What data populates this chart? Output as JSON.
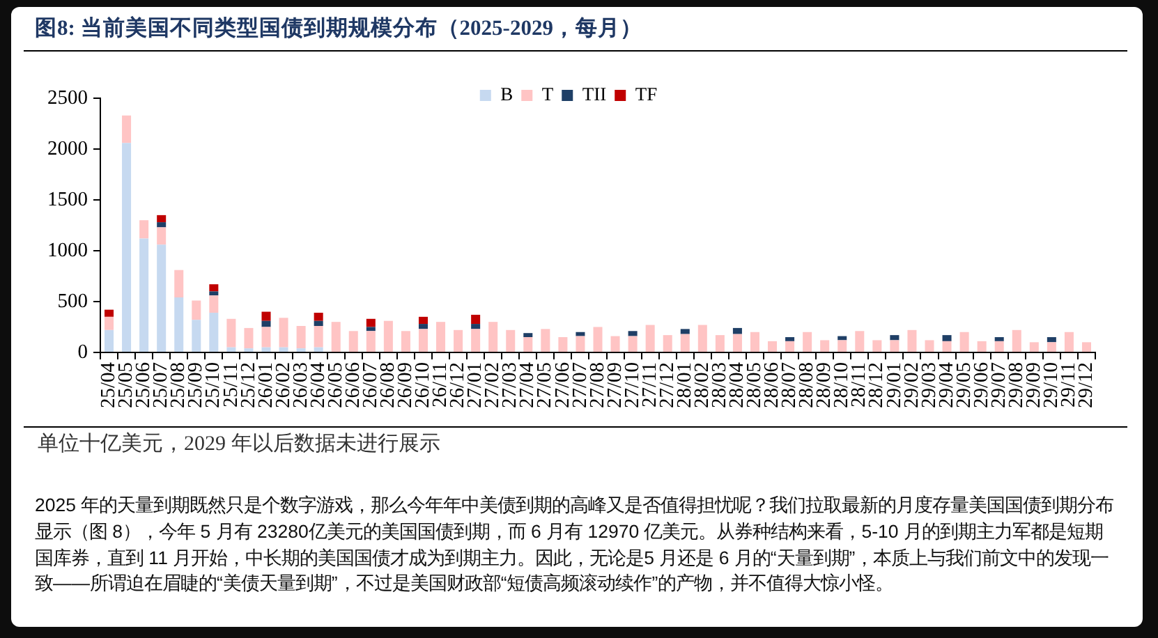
{
  "chart_data": {
    "type": "bar",
    "title": "图8: 当前美国不同类型国债到期规模分布（2025-2029，每月）",
    "categories": [
      "25/04",
      "25/05",
      "25/06",
      "25/07",
      "25/08",
      "25/09",
      "25/10",
      "25/11",
      "25/12",
      "26/01",
      "26/02",
      "26/03",
      "26/04",
      "26/05",
      "26/06",
      "26/07",
      "26/08",
      "26/09",
      "26/10",
      "26/11",
      "26/12",
      "27/01",
      "27/02",
      "27/03",
      "27/04",
      "27/05",
      "27/06",
      "27/07",
      "27/08",
      "27/09",
      "27/10",
      "27/11",
      "27/12",
      "28/01",
      "28/02",
      "28/03",
      "28/04",
      "28/05",
      "28/06",
      "28/07",
      "28/08",
      "28/09",
      "28/10",
      "28/11",
      "28/12",
      "29/01",
      "29/02",
      "29/03",
      "29/04",
      "29/05",
      "29/06",
      "29/07",
      "29/08",
      "29/09",
      "29/10",
      "29/11",
      "29/12"
    ],
    "series": [
      {
        "name": "B",
        "color": "#c6d9f0",
        "values": [
          220,
          2060,
          1120,
          1060,
          540,
          320,
          390,
          50,
          40,
          50,
          50,
          40,
          50,
          null,
          null,
          null,
          null,
          null,
          null,
          null,
          null,
          null,
          null,
          null,
          null,
          null,
          null,
          null,
          null,
          null,
          null,
          null,
          null,
          null,
          null,
          null,
          null,
          null,
          null,
          null,
          null,
          null,
          null,
          null,
          null,
          null,
          null,
          null,
          null,
          null,
          null,
          null,
          null,
          null,
          null,
          null,
          null
        ]
      },
      {
        "name": "T",
        "color": "#ffc4c4",
        "values": [
          130,
          270,
          180,
          170,
          270,
          190,
          170,
          280,
          200,
          200,
          290,
          220,
          210,
          300,
          210,
          210,
          310,
          210,
          230,
          300,
          220,
          230,
          300,
          220,
          150,
          230,
          150,
          160,
          250,
          160,
          160,
          270,
          170,
          180,
          270,
          170,
          180,
          200,
          110,
          110,
          200,
          120,
          120,
          210,
          120,
          120,
          220,
          120,
          110,
          200,
          110,
          110,
          220,
          100,
          100,
          200,
          100
        ]
      },
      {
        "name": "TII",
        "color": "#1f3f66",
        "values": [
          null,
          null,
          null,
          50,
          null,
          null,
          40,
          null,
          null,
          60,
          null,
          null,
          50,
          null,
          null,
          40,
          null,
          null,
          50,
          null,
          null,
          50,
          null,
          null,
          40,
          null,
          null,
          40,
          null,
          null,
          50,
          null,
          null,
          50,
          null,
          null,
          60,
          null,
          null,
          40,
          null,
          null,
          40,
          null,
          null,
          50,
          null,
          null,
          60,
          null,
          null,
          40,
          null,
          null,
          50,
          null,
          null
        ]
      },
      {
        "name": "TF",
        "color": "#c00000",
        "values": [
          70,
          null,
          null,
          70,
          null,
          null,
          70,
          null,
          null,
          90,
          null,
          null,
          80,
          null,
          null,
          80,
          null,
          null,
          70,
          null,
          null,
          90,
          null,
          null,
          null,
          null,
          null,
          null,
          null,
          null,
          null,
          null,
          null,
          null,
          null,
          null,
          null,
          null,
          null,
          null,
          null,
          null,
          null,
          null,
          null,
          null,
          null,
          null,
          null,
          null,
          null,
          null,
          null,
          null,
          null,
          null,
          null
        ]
      }
    ],
    "stacked": true,
    "ylim": [
      0,
      2500
    ],
    "yticks": [
      0,
      500,
      1000,
      1500,
      2000,
      2500
    ],
    "legend": "top",
    "annotations": [
      "单位十亿美元，2029 年以后数据未进行展示",
      "2025 年的天量到期既然只是个数字游戏，那么今年年中美债到期的高峰又是否值得担忧呢？我们拉取最新的月度存量美国国债到期分布显示（图 8），今年 5 月有 23280亿美元的美国国债到期，而 6 月有 12970 亿美元。从券种结构来看，5-10 月的到期主力军都是短期国库券，直到 11 月开始，中长期的美国国债才成为到期主力。因此，无论是5 月还是 6 月的“天量到期”，本质上与我们前文中的发现一致——所谓迫在眉睫的“美债天量到期”，不过是美国财政部“短债高频滚动续作”的产物，并不值得大惊小怪。"
    ]
  }
}
